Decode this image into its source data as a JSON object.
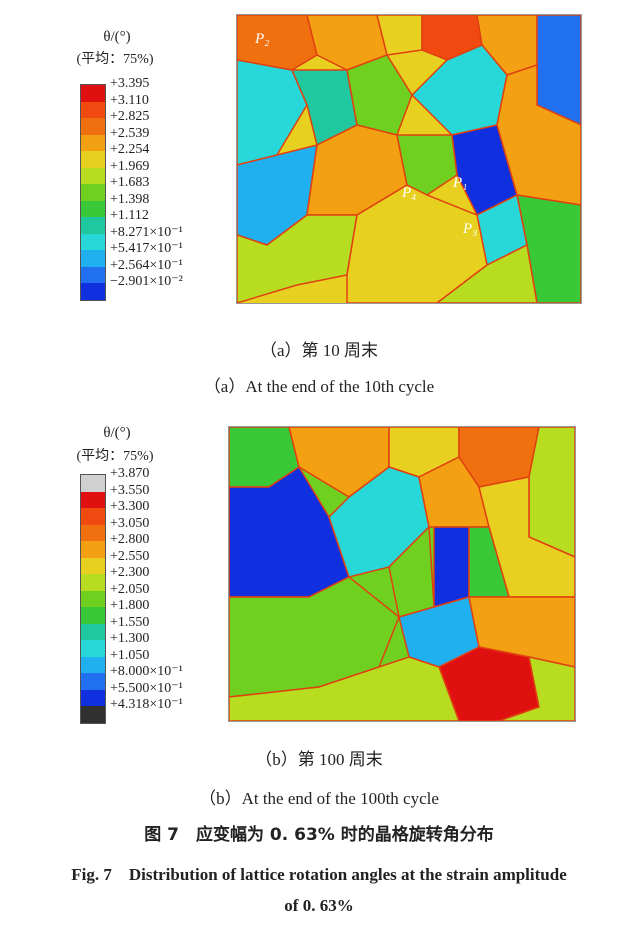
{
  "panel_a": {
    "legend_title": "θ/(°)",
    "legend_sub": "(平均：75%)",
    "colors": [
      "#e01010",
      "#f04a10",
      "#f07010",
      "#f3a012",
      "#e8d020",
      "#b8dc20",
      "#70d020",
      "#38c838",
      "#20c8a0",
      "#28d8d8",
      "#20b0f0",
      "#2070f0",
      "#1030e0"
    ],
    "ticks": [
      "+3.395",
      "+3.110",
      "+2.825",
      "+2.539",
      "+2.254",
      "+1.969",
      "+1.683",
      "+1.398",
      "+1.112",
      "+8.271×10⁻¹",
      "+5.417×10⁻¹",
      "+2.564×10⁻¹",
      "−2.901×10⁻²"
    ],
    "points": [
      "P₂",
      "P₄",
      "P₁",
      "P₃"
    ],
    "caption_cn": "（a）第 10 周末",
    "caption_en": "（a）At the end of the 10th cycle"
  },
  "panel_b": {
    "legend_title": "θ/(°)",
    "legend_sub": "(平均：75%)",
    "colors": [
      "#d0d0d0",
      "#e01010",
      "#f04a10",
      "#f07010",
      "#f3a012",
      "#e8d020",
      "#b8dc20",
      "#70d020",
      "#38c838",
      "#20c8a0",
      "#28d8d8",
      "#20b0f0",
      "#2070f0",
      "#1030e0",
      "#303030"
    ],
    "ticks": [
      "+3.870",
      "+3.550",
      "+3.300",
      "+3.050",
      "+2.800",
      "+2.550",
      "+2.300",
      "+2.050",
      "+1.800",
      "+1.550",
      "+1.300",
      "+1.050",
      "+8.000×10⁻¹",
      "+5.500×10⁻¹",
      "+4.318×10⁻¹"
    ],
    "caption_cn": "（b）第 100 周末",
    "caption_en": "（b）At the end of the 100th cycle"
  },
  "figure": {
    "title_cn": "图 7　应变幅为 0. 63% 时的晶格旋转角分布",
    "title_en_line1": "Fig. 7　Distribution of lattice rotation angles at the strain amplitude",
    "title_en_line2": "of 0. 63%"
  }
}
